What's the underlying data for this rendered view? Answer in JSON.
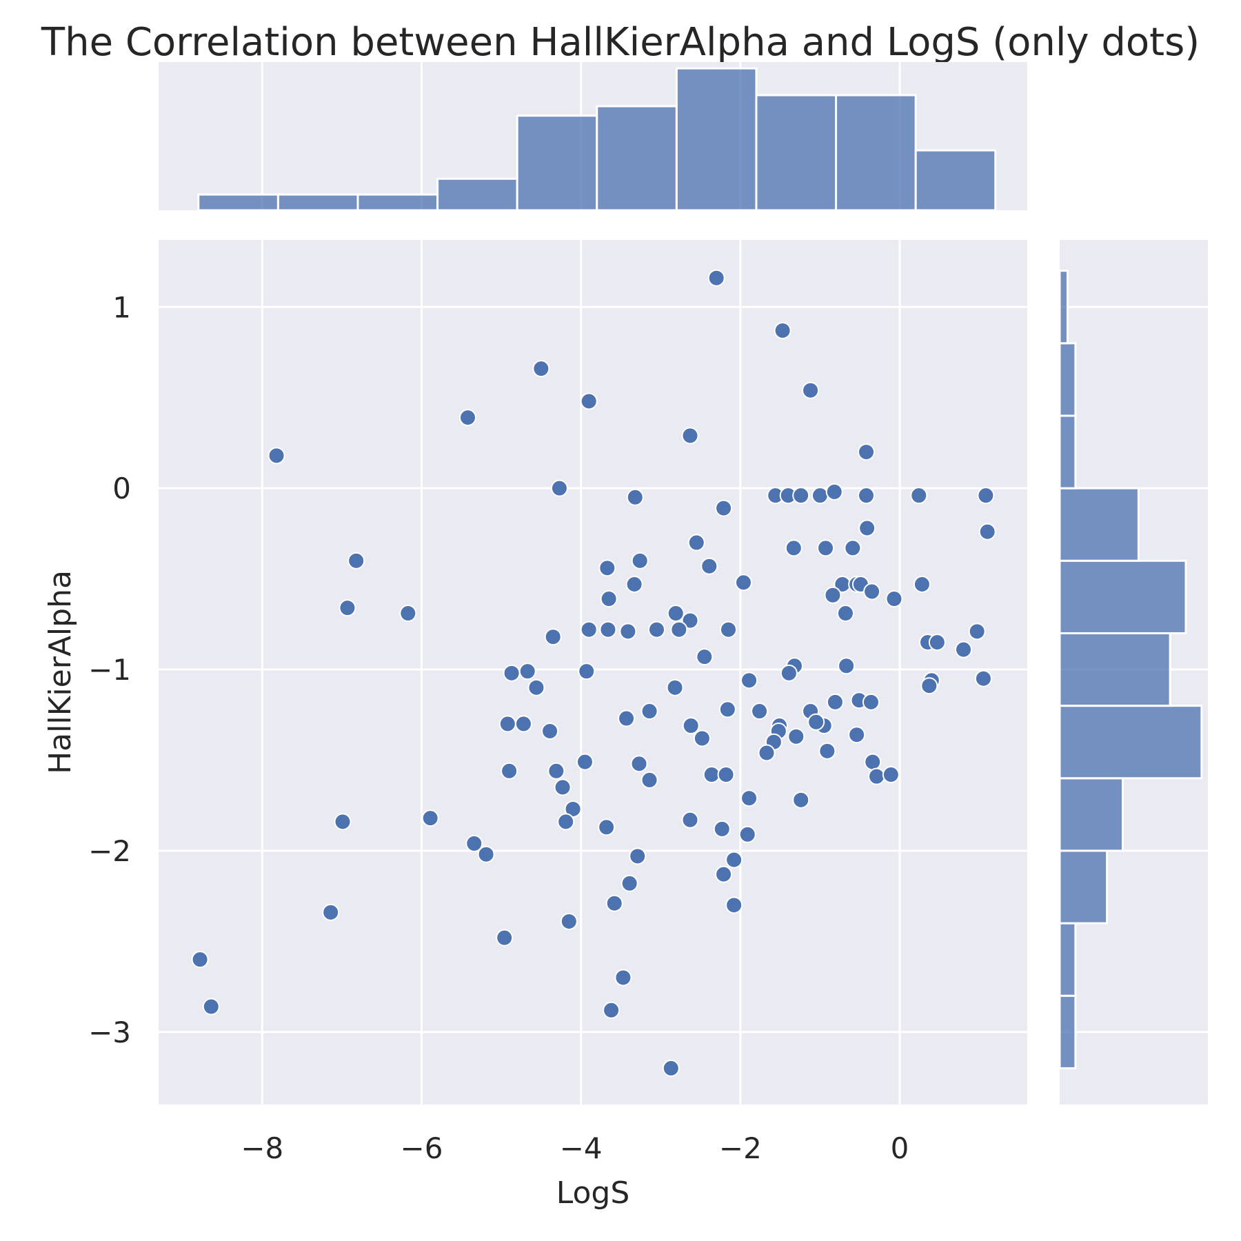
{
  "chart_data": {
    "type": "scatter",
    "title": "The Correlation between HallKierAlpha and LogS (only dots)",
    "xlabel": "LogS",
    "ylabel": "HallKierAlpha",
    "xlim": [
      -9.3,
      1.6
    ],
    "ylim": [
      -3.4,
      1.37
    ],
    "xticks": [
      -8,
      -6,
      -4,
      -2,
      0
    ],
    "xtick_labels": [
      "−8",
      "−6",
      "−4",
      "−2",
      "0"
    ],
    "yticks": [
      1,
      0,
      -1,
      -2,
      -3
    ],
    "ytick_labels": [
      "1",
      "0",
      "−1",
      "−2",
      "−3"
    ],
    "grid": true,
    "colors": {
      "background": "#eaeaf2",
      "points": "#4c72b0",
      "bars": "#4c72b0",
      "grid": "#ffffff"
    },
    "points": [
      [
        -2.3,
        1.16
      ],
      [
        -1.47,
        0.87
      ],
      [
        -4.5,
        0.66
      ],
      [
        -1.12,
        0.54
      ],
      [
        -3.9,
        0.48
      ],
      [
        -5.42,
        0.39
      ],
      [
        -2.63,
        0.29
      ],
      [
        -0.42,
        0.2
      ],
      [
        -7.82,
        0.18
      ],
      [
        -4.27,
        0.0
      ],
      [
        -1.56,
        -0.04
      ],
      [
        -1.4,
        -0.04
      ],
      [
        -1.24,
        -0.04
      ],
      [
        -1.0,
        -0.04
      ],
      [
        -0.82,
        -0.02
      ],
      [
        -0.42,
        -0.04
      ],
      [
        0.24,
        -0.04
      ],
      [
        1.08,
        -0.04
      ],
      [
        -3.32,
        -0.05
      ],
      [
        -2.21,
        -0.11
      ],
      [
        -0.41,
        -0.22
      ],
      [
        1.1,
        -0.24
      ],
      [
        -2.55,
        -0.3
      ],
      [
        -1.33,
        -0.33
      ],
      [
        -0.93,
        -0.33
      ],
      [
        -0.59,
        -0.33
      ],
      [
        -6.82,
        -0.4
      ],
      [
        -3.26,
        -0.4
      ],
      [
        -3.67,
        -0.44
      ],
      [
        -2.39,
        -0.43
      ],
      [
        -1.96,
        -0.52
      ],
      [
        -3.33,
        -0.53
      ],
      [
        -0.72,
        -0.53
      ],
      [
        -0.54,
        -0.53
      ],
      [
        -0.49,
        -0.53
      ],
      [
        0.28,
        -0.53
      ],
      [
        -0.84,
        -0.59
      ],
      [
        -0.35,
        -0.57
      ],
      [
        -0.07,
        -0.61
      ],
      [
        -3.65,
        -0.61
      ],
      [
        -6.93,
        -0.66
      ],
      [
        -6.17,
        -0.69
      ],
      [
        -2.81,
        -0.69
      ],
      [
        -0.68,
        -0.69
      ],
      [
        -2.63,
        -0.73
      ],
      [
        -3.9,
        -0.78
      ],
      [
        -3.66,
        -0.78
      ],
      [
        -3.41,
        -0.79
      ],
      [
        -3.05,
        -0.78
      ],
      [
        -2.77,
        -0.78
      ],
      [
        -2.15,
        -0.78
      ],
      [
        -4.35,
        -0.82
      ],
      [
        0.35,
        -0.85
      ],
      [
        0.47,
        -0.85
      ],
      [
        0.8,
        -0.89
      ],
      [
        0.97,
        -0.79
      ],
      [
        -2.45,
        -0.93
      ],
      [
        -1.32,
        -0.98
      ],
      [
        -0.67,
        -0.98
      ],
      [
        -1.39,
        -1.02
      ],
      [
        -3.93,
        -1.01
      ],
      [
        -4.87,
        -1.02
      ],
      [
        -4.67,
        -1.01
      ],
      [
        -4.56,
        -1.1
      ],
      [
        -2.82,
        -1.1
      ],
      [
        -1.89,
        -1.06
      ],
      [
        0.4,
        -1.06
      ],
      [
        0.37,
        -1.09
      ],
      [
        1.05,
        -1.05
      ],
      [
        -2.16,
        -1.22
      ],
      [
        -1.76,
        -1.23
      ],
      [
        -1.12,
        -1.23
      ],
      [
        -0.81,
        -1.18
      ],
      [
        -0.51,
        -1.17
      ],
      [
        -0.36,
        -1.18
      ],
      [
        -3.43,
        -1.27
      ],
      [
        -3.14,
        -1.23
      ],
      [
        -4.92,
        -1.3
      ],
      [
        -4.72,
        -1.3
      ],
      [
        -4.39,
        -1.34
      ],
      [
        -2.62,
        -1.31
      ],
      [
        -1.51,
        -1.31
      ],
      [
        -0.95,
        -1.31
      ],
      [
        -1.05,
        -1.29
      ],
      [
        -1.52,
        -1.34
      ],
      [
        -2.48,
        -1.38
      ],
      [
        -1.3,
        -1.37
      ],
      [
        -0.54,
        -1.36
      ],
      [
        -1.58,
        -1.4
      ],
      [
        -1.67,
        -1.46
      ],
      [
        -0.91,
        -1.45
      ],
      [
        -3.95,
        -1.51
      ],
      [
        -3.27,
        -1.52
      ],
      [
        -0.34,
        -1.51
      ],
      [
        -4.9,
        -1.56
      ],
      [
        -4.31,
        -1.56
      ],
      [
        -2.36,
        -1.58
      ],
      [
        -2.18,
        -1.58
      ],
      [
        -0.29,
        -1.59
      ],
      [
        -0.11,
        -1.58
      ],
      [
        -3.14,
        -1.61
      ],
      [
        -4.23,
        -1.65
      ],
      [
        -1.89,
        -1.71
      ],
      [
        -1.24,
        -1.72
      ],
      [
        -4.1,
        -1.77
      ],
      [
        -5.89,
        -1.82
      ],
      [
        -6.99,
        -1.84
      ],
      [
        -4.19,
        -1.84
      ],
      [
        -2.63,
        -1.83
      ],
      [
        -3.68,
        -1.87
      ],
      [
        -2.23,
        -1.88
      ],
      [
        -1.91,
        -1.91
      ],
      [
        -5.34,
        -1.96
      ],
      [
        -5.19,
        -2.02
      ],
      [
        -3.29,
        -2.03
      ],
      [
        -2.08,
        -2.05
      ],
      [
        -2.21,
        -2.13
      ],
      [
        -3.39,
        -2.18
      ],
      [
        -7.14,
        -2.34
      ],
      [
        -3.58,
        -2.29
      ],
      [
        -2.08,
        -2.3
      ],
      [
        -4.15,
        -2.39
      ],
      [
        -4.96,
        -2.48
      ],
      [
        -8.78,
        -2.6
      ],
      [
        -8.64,
        -2.86
      ],
      [
        -3.47,
        -2.7
      ],
      [
        -3.62,
        -2.88
      ],
      [
        -2.87,
        -3.2
      ]
    ],
    "x_histogram": {
      "bin_edges": [
        -8.8,
        -7.8,
        -6.8,
        -5.8,
        -4.8,
        -3.8,
        -2.8,
        -1.8,
        -0.8,
        0.2,
        1.2
      ],
      "counts": [
        1,
        1,
        1,
        2,
        6,
        6.6,
        9,
        7.3,
        7.3,
        3.8
      ]
    },
    "y_histogram": {
      "bin_edges": [
        -3.2,
        -2.8,
        -2.4,
        -2.0,
        -1.6,
        -1.2,
        -0.8,
        -0.4,
        0.0,
        0.4,
        0.8,
        1.2
      ],
      "counts": [
        1,
        1,
        3,
        4,
        9,
        7,
        8,
        5,
        1,
        1,
        0.5
      ]
    }
  }
}
